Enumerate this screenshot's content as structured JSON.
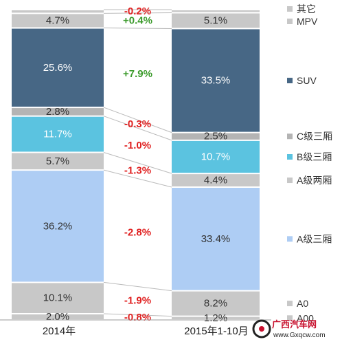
{
  "chart_data": {
    "type": "bar",
    "stacked": true,
    "categories": [
      "2014年",
      "2015年1-10月"
    ],
    "series": [
      {
        "name": "A00",
        "values": [
          2.0,
          1.2
        ],
        "color": "#c8c8c8",
        "label_color": "#333333"
      },
      {
        "name": "A0",
        "values": [
          10.1,
          8.2
        ],
        "color": "#c8c8c8",
        "label_color": "#333333"
      },
      {
        "name": "A级三厢",
        "values": [
          36.2,
          33.4
        ],
        "color": "#aecdf4",
        "label_color": "#333333"
      },
      {
        "name": "A级两厢",
        "values": [
          5.7,
          4.4
        ],
        "color": "#c8c8c8",
        "label_color": "#333333"
      },
      {
        "name": "B级三厢",
        "values": [
          11.7,
          10.7
        ],
        "color": "#5bc3e0",
        "label_color": "#ffffff"
      },
      {
        "name": "C级三厢",
        "values": [
          2.8,
          2.5
        ],
        "color": "#b4b4b4",
        "label_color": "#333333"
      },
      {
        "name": "SUV",
        "values": [
          25.6,
          33.5
        ],
        "color": "#476785",
        "label_color": "#ffffff"
      },
      {
        "name": "MPV",
        "values": [
          4.7,
          5.1
        ],
        "color": "#c8c8c8",
        "label_color": "#333333"
      },
      {
        "name": "其它",
        "values": [
          1.2,
          1.0
        ],
        "color": "#c8c8c8",
        "label_color": "#333333"
      }
    ],
    "value_labels": [
      [
        "2.0%",
        "10.1%",
        "36.2%",
        "5.7%",
        "11.7%",
        "2.8%",
        "25.6%",
        "4.7%",
        ""
      ],
      [
        "1.2%",
        "8.2%",
        "33.4%",
        "4.4%",
        "10.7%",
        "2.5%",
        "33.5%",
        "5.1%",
        ""
      ]
    ],
    "changes": [
      "-0.8%",
      "-1.9%",
      "-2.8%",
      "-1.3%",
      "-1.0%",
      "-0.3%",
      "+7.9%",
      "+0.4%",
      "-0.2%"
    ],
    "change_colors": {
      "positive": "#3a9a2a",
      "negative": "#e02020"
    },
    "legend": [
      "其它",
      "MPV",
      "SUV",
      "C级三厢",
      "B级三厢",
      "A级两厢",
      "A级三厢",
      "A0",
      "A00"
    ],
    "legend_placement": "right",
    "ylim": [
      0,
      100
    ],
    "title": "",
    "xlabel": "",
    "ylabel": ""
  },
  "watermark": {
    "text": "广西汽车网",
    "url": "www.Gxqcw.com"
  }
}
